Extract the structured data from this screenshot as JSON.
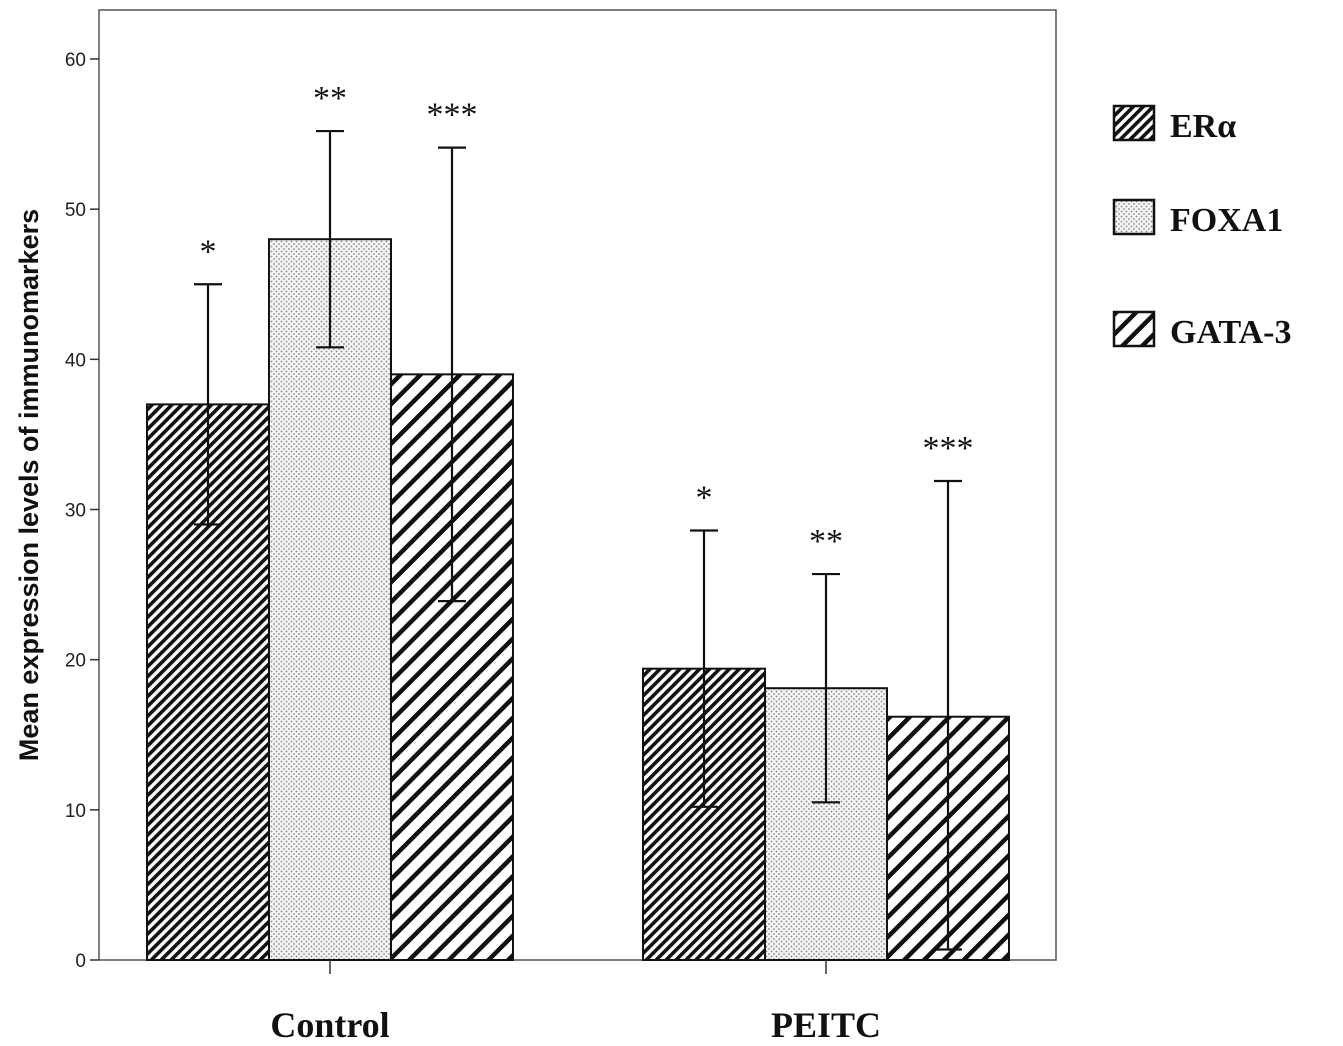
{
  "chart_data": {
    "type": "bar",
    "ylabel": "Mean expression levels of immunomarkers",
    "xlabel": "",
    "categories": [
      "Control",
      "PEITC"
    ],
    "ylim": [
      0,
      60
    ],
    "yticks": [
      0,
      10,
      20,
      30,
      40,
      50,
      60
    ],
    "grid": false,
    "legend_position": "right",
    "error_bars": true,
    "series": [
      {
        "name": "ERα",
        "pattern": "dense-diagonal-hatch",
        "values": [
          37,
          19.4
        ],
        "error_low": [
          29,
          10.2
        ],
        "error_high": [
          45,
          28.6
        ],
        "annotations": [
          "*",
          "*"
        ]
      },
      {
        "name": "FOXA1",
        "pattern": "fine-dots",
        "values": [
          48,
          18.1
        ],
        "error_low": [
          40.8,
          10.5
        ],
        "error_high": [
          55.2,
          25.7
        ],
        "annotations": [
          "**",
          "**"
        ]
      },
      {
        "name": "GATA-3",
        "pattern": "wide-diagonal-hatch",
        "values": [
          39,
          16.2
        ],
        "error_low": [
          23.9,
          0.7
        ],
        "error_high": [
          54.1,
          31.9
        ],
        "annotations": [
          "***",
          "***"
        ]
      }
    ]
  },
  "colors": {
    "bar_stroke": "#111111",
    "hatch": "#111111",
    "dot": "#888888",
    "background": "#ffffff"
  }
}
